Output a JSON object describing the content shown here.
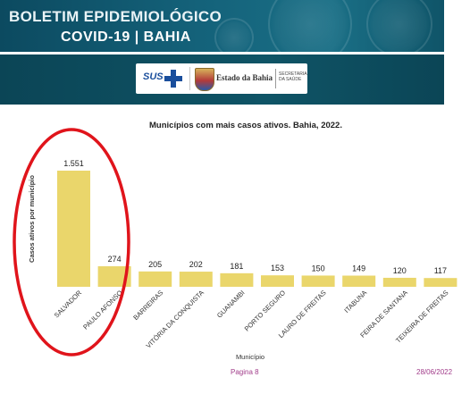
{
  "header": {
    "title": "BOLETIM EPIDEMIOLÓGICO",
    "subtitle": "COVID-19 | BAHIA"
  },
  "logos": {
    "sus": "SUS",
    "state": "Estado da Bahia",
    "secretaria": "SECRETARIA DA SAÚDE"
  },
  "chart_data": {
    "type": "bar",
    "title": "Municípios com mais casos ativos. Bahia, 2022.",
    "xlabel": "Município",
    "ylabel": "Casos ativos por município",
    "categories": [
      "SALVADOR",
      "PAULO AFONSO",
      "BARREIRAS",
      "VITÓRIA DA CONQUISTA",
      "GUANAMBI",
      "PORTO SEGURO",
      "LAURO DE FREITAS",
      "ITABUNA",
      "FEIRA DE SANTANA",
      "TEIXEIRA DE FREITAS"
    ],
    "values": [
      1551,
      274,
      205,
      202,
      181,
      153,
      150,
      149,
      120,
      117
    ],
    "value_labels": [
      "1.551",
      "274",
      "205",
      "202",
      "181",
      "153",
      "150",
      "149",
      "120",
      "117"
    ],
    "bar_color": "#ead66b",
    "annotation_color": "#e0141b",
    "grid": false,
    "legend": "none"
  },
  "footer": {
    "page": "Pagina 8",
    "date": "28/06/2022"
  }
}
